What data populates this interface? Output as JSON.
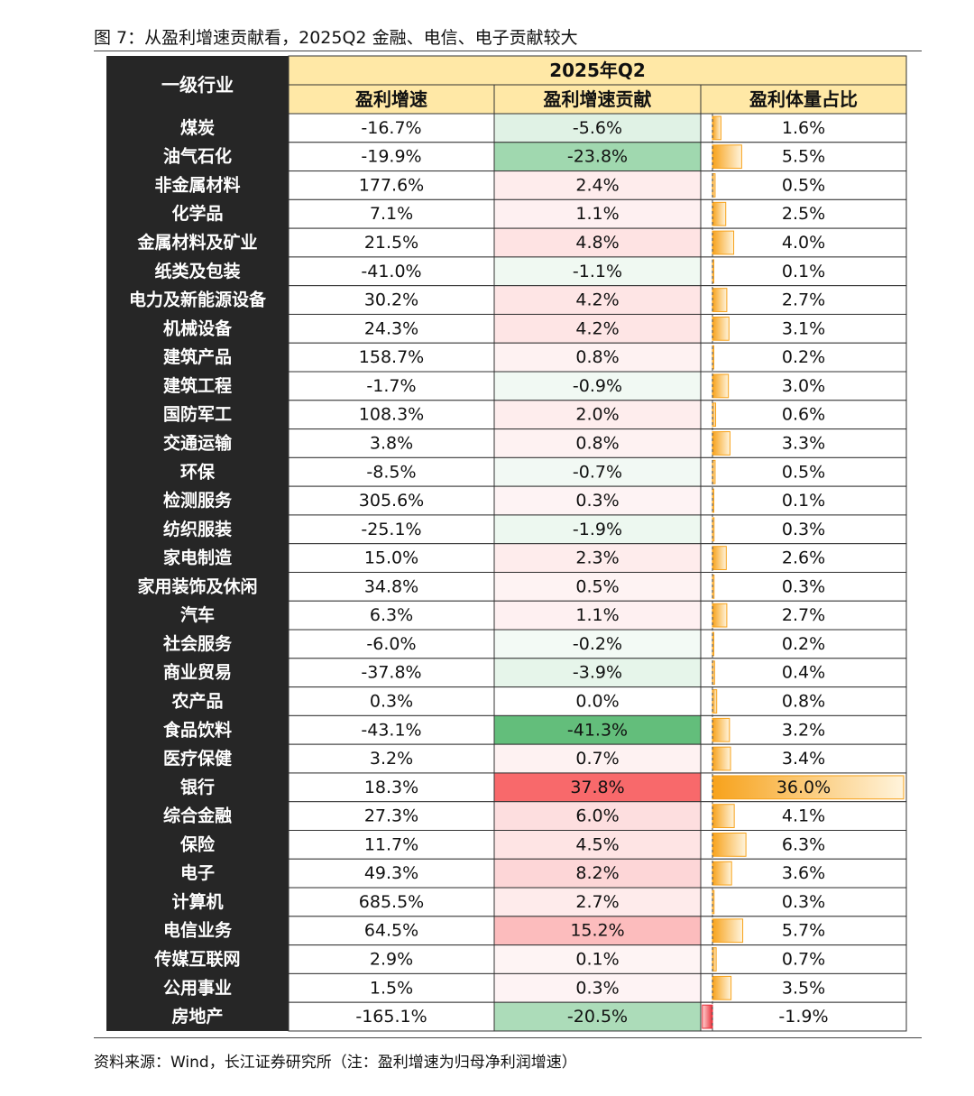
{
  "title": "图 7：从盈利增速贡献看，2025Q2 金融、电信、电子贡献较大",
  "source": "资料来源：Wind，长江证券研究所（注：盈利增速为归母净利润增速）",
  "chart_data": {
    "type": "table",
    "row_header": "一级行业",
    "period": "2025年Q2",
    "columns": [
      "盈利增速",
      "盈利增速贡献",
      "盈利体量占比"
    ],
    "rows": [
      {
        "industry": "煤炭",
        "growth": -16.7,
        "contribution": -5.6,
        "share": 1.6
      },
      {
        "industry": "油气石化",
        "growth": -19.9,
        "contribution": -23.8,
        "share": 5.5
      },
      {
        "industry": "非金属材料",
        "growth": 177.6,
        "contribution": 2.4,
        "share": 0.5
      },
      {
        "industry": "化学品",
        "growth": 7.1,
        "contribution": 1.1,
        "share": 2.5
      },
      {
        "industry": "金属材料及矿业",
        "growth": 21.5,
        "contribution": 4.8,
        "share": 4.0
      },
      {
        "industry": "纸类及包装",
        "growth": -41.0,
        "contribution": -1.1,
        "share": 0.1
      },
      {
        "industry": "电力及新能源设备",
        "growth": 30.2,
        "contribution": 4.2,
        "share": 2.7
      },
      {
        "industry": "机械设备",
        "growth": 24.3,
        "contribution": 4.2,
        "share": 3.1
      },
      {
        "industry": "建筑产品",
        "growth": 158.7,
        "contribution": 0.8,
        "share": 0.2
      },
      {
        "industry": "建筑工程",
        "growth": -1.7,
        "contribution": -0.9,
        "share": 3.0
      },
      {
        "industry": "国防军工",
        "growth": 108.3,
        "contribution": 2.0,
        "share": 0.6
      },
      {
        "industry": "交通运输",
        "growth": 3.8,
        "contribution": 0.8,
        "share": 3.3
      },
      {
        "industry": "环保",
        "growth": -8.5,
        "contribution": -0.7,
        "share": 0.5
      },
      {
        "industry": "检测服务",
        "growth": 305.6,
        "contribution": 0.3,
        "share": 0.1
      },
      {
        "industry": "纺织服装",
        "growth": -25.1,
        "contribution": -1.9,
        "share": 0.3
      },
      {
        "industry": "家电制造",
        "growth": 15.0,
        "contribution": 2.3,
        "share": 2.6
      },
      {
        "industry": "家用装饰及休闲",
        "growth": 34.8,
        "contribution": 0.5,
        "share": 0.3
      },
      {
        "industry": "汽车",
        "growth": 6.3,
        "contribution": 1.1,
        "share": 2.7
      },
      {
        "industry": "社会服务",
        "growth": -6.0,
        "contribution": -0.2,
        "share": 0.2
      },
      {
        "industry": "商业贸易",
        "growth": -37.8,
        "contribution": -3.9,
        "share": 0.4
      },
      {
        "industry": "农产品",
        "growth": 0.3,
        "contribution": 0.0,
        "share": 0.8
      },
      {
        "industry": "食品饮料",
        "growth": -43.1,
        "contribution": -41.3,
        "share": 3.2
      },
      {
        "industry": "医疗保健",
        "growth": 3.2,
        "contribution": 0.7,
        "share": 3.4
      },
      {
        "industry": "银行",
        "growth": 18.3,
        "contribution": 37.8,
        "share": 36.0
      },
      {
        "industry": "综合金融",
        "growth": 27.3,
        "contribution": 6.0,
        "share": 4.1
      },
      {
        "industry": "保险",
        "growth": 11.7,
        "contribution": 4.5,
        "share": 6.3
      },
      {
        "industry": "电子",
        "growth": 49.3,
        "contribution": 8.2,
        "share": 3.6
      },
      {
        "industry": "计算机",
        "growth": 685.5,
        "contribution": 2.7,
        "share": 0.3
      },
      {
        "industry": "电信业务",
        "growth": 64.5,
        "contribution": 15.2,
        "share": 5.7
      },
      {
        "industry": "传媒互联网",
        "growth": 2.9,
        "contribution": 0.1,
        "share": 0.7
      },
      {
        "industry": "公用事业",
        "growth": 1.5,
        "contribution": 0.3,
        "share": 3.5
      },
      {
        "industry": "房地产",
        "growth": -165.1,
        "contribution": -20.5,
        "share": -1.9
      }
    ],
    "colors": {
      "header_bg": "#262626",
      "subheader_bg": "#ffe8a6",
      "positive": "#f8696b",
      "negative": "#63be7b",
      "bar": "#f7a21b",
      "bar_negative": "#e8303a"
    }
  }
}
